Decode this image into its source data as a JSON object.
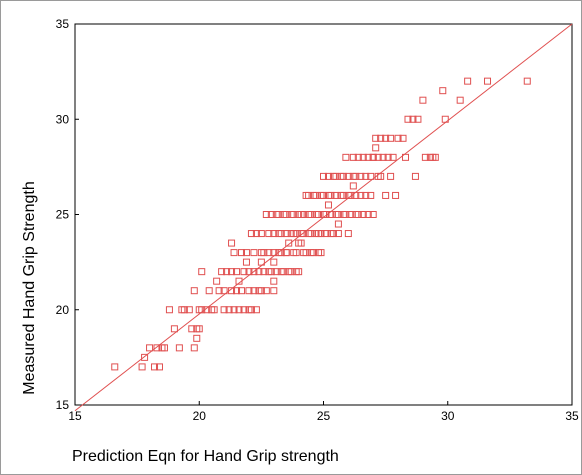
{
  "chart_data": {
    "type": "scatter",
    "title": "",
    "xlabel": "Prediction Eqn for Hand Grip strength",
    "ylabel": "Measured Hand Grip Strength",
    "xlim": [
      15,
      35
    ],
    "ylim": [
      15,
      35
    ],
    "xticks": [
      "15",
      "20",
      "25",
      "30",
      "35"
    ],
    "yticks": [
      "15",
      "20",
      "25",
      "30",
      "35"
    ],
    "grid": false,
    "legend": "none",
    "marker": "hollow-square",
    "colors": {
      "points": "#e05050",
      "fit_line": "#e05050",
      "axes": "#000000",
      "background": "#ffffff"
    },
    "fit_line": {
      "x": [
        15,
        35
      ],
      "y": [
        14.7,
        35
      ]
    },
    "series": [
      {
        "values": [
          [
            16.6,
            17
          ],
          [
            17.7,
            17
          ],
          [
            17.8,
            17.5
          ],
          [
            18.0,
            18
          ],
          [
            18.2,
            17
          ],
          [
            18.3,
            18
          ],
          [
            18.4,
            17
          ],
          [
            18.5,
            18
          ],
          [
            18.6,
            18
          ],
          [
            18.8,
            20
          ],
          [
            19.0,
            19
          ],
          [
            19.2,
            18
          ],
          [
            19.3,
            20
          ],
          [
            19.4,
            20
          ],
          [
            19.6,
            20
          ],
          [
            19.7,
            19
          ],
          [
            19.8,
            18
          ],
          [
            19.8,
            21
          ],
          [
            19.9,
            18.5
          ],
          [
            19.9,
            19
          ],
          [
            20.0,
            19
          ],
          [
            20.0,
            20
          ],
          [
            20.1,
            22
          ],
          [
            20.1,
            20
          ],
          [
            20.3,
            20
          ],
          [
            20.4,
            21
          ],
          [
            20.5,
            20
          ],
          [
            20.6,
            20
          ],
          [
            20.7,
            21.5
          ],
          [
            20.8,
            21
          ],
          [
            20.9,
            22
          ],
          [
            21.0,
            20
          ],
          [
            21.0,
            21
          ],
          [
            21.1,
            22
          ],
          [
            21.2,
            20
          ],
          [
            21.3,
            21
          ],
          [
            21.3,
            22
          ],
          [
            21.4,
            20
          ],
          [
            21.4,
            23
          ],
          [
            21.5,
            21
          ],
          [
            21.5,
            22
          ],
          [
            21.6,
            20
          ],
          [
            21.6,
            21.5
          ],
          [
            21.7,
            23
          ],
          [
            21.7,
            21
          ],
          [
            21.8,
            20
          ],
          [
            21.8,
            22
          ],
          [
            21.9,
            22.5
          ],
          [
            21.9,
            23
          ],
          [
            22.0,
            20
          ],
          [
            22.0,
            21
          ],
          [
            22.0,
            22
          ],
          [
            22.1,
            24
          ],
          [
            22.1,
            20
          ],
          [
            22.2,
            21
          ],
          [
            22.2,
            22
          ],
          [
            22.2,
            23
          ],
          [
            22.3,
            24
          ],
          [
            22.3,
            20
          ],
          [
            22.4,
            21
          ],
          [
            22.4,
            22
          ],
          [
            22.5,
            23
          ],
          [
            22.5,
            24
          ],
          [
            22.5,
            21
          ],
          [
            22.6,
            22
          ],
          [
            22.6,
            23
          ],
          [
            22.7,
            25
          ],
          [
            22.7,
            21
          ],
          [
            22.8,
            22
          ],
          [
            22.8,
            23
          ],
          [
            22.8,
            24
          ],
          [
            22.9,
            25
          ],
          [
            22.9,
            22
          ],
          [
            23.0,
            21
          ],
          [
            23.0,
            22.5
          ],
          [
            23.0,
            23
          ],
          [
            23.0,
            24
          ],
          [
            23.1,
            25
          ],
          [
            23.1,
            22
          ],
          [
            23.2,
            23
          ],
          [
            23.2,
            24
          ],
          [
            23.2,
            25
          ],
          [
            23.3,
            22
          ],
          [
            23.3,
            23
          ],
          [
            23.3,
            24
          ],
          [
            23.4,
            25
          ],
          [
            23.4,
            22
          ],
          [
            23.5,
            23
          ],
          [
            23.5,
            24
          ],
          [
            23.5,
            25
          ],
          [
            23.6,
            22
          ],
          [
            23.6,
            23.5
          ],
          [
            23.7,
            24
          ],
          [
            23.7,
            25
          ],
          [
            23.7,
            22
          ],
          [
            23.8,
            23
          ],
          [
            23.8,
            24
          ],
          [
            23.8,
            25
          ],
          [
            23.9,
            22
          ],
          [
            23.9,
            23
          ],
          [
            23.9,
            24
          ],
          [
            24.0,
            25
          ],
          [
            24.0,
            22
          ],
          [
            24.0,
            23.5
          ],
          [
            24.1,
            24
          ],
          [
            24.1,
            25
          ],
          [
            24.2,
            23
          ],
          [
            24.2,
            24
          ],
          [
            24.2,
            25
          ],
          [
            24.3,
            26
          ],
          [
            24.3,
            23
          ],
          [
            24.4,
            24
          ],
          [
            24.4,
            25
          ],
          [
            24.4,
            26
          ],
          [
            24.5,
            23
          ],
          [
            24.5,
            24
          ],
          [
            24.5,
            25
          ],
          [
            24.6,
            26
          ],
          [
            24.6,
            23
          ],
          [
            24.7,
            24
          ],
          [
            24.7,
            25
          ],
          [
            24.7,
            26
          ],
          [
            24.8,
            23
          ],
          [
            24.8,
            24
          ],
          [
            24.8,
            25
          ],
          [
            24.9,
            26
          ],
          [
            24.9,
            23
          ],
          [
            24.9,
            24
          ],
          [
            25.0,
            25
          ],
          [
            25.0,
            26
          ],
          [
            25.0,
            27
          ],
          [
            25.1,
            24
          ],
          [
            25.1,
            25
          ],
          [
            25.2,
            26
          ],
          [
            25.2,
            27
          ],
          [
            25.3,
            24
          ],
          [
            25.3,
            25
          ],
          [
            25.3,
            26
          ],
          [
            25.4,
            27
          ],
          [
            25.4,
            24
          ],
          [
            25.5,
            25
          ],
          [
            25.5,
            26
          ],
          [
            25.5,
            27
          ],
          [
            25.6,
            24
          ],
          [
            25.6,
            25
          ],
          [
            25.7,
            26
          ],
          [
            25.7,
            27
          ],
          [
            25.8,
            25
          ],
          [
            25.8,
            26
          ],
          [
            25.8,
            27
          ],
          [
            25.9,
            28
          ],
          [
            25.9,
            25
          ],
          [
            26.0,
            26
          ],
          [
            26.0,
            27
          ],
          [
            26.1,
            25
          ],
          [
            26.1,
            26
          ],
          [
            26.2,
            27
          ],
          [
            26.2,
            28
          ],
          [
            26.3,
            25
          ],
          [
            26.3,
            26
          ],
          [
            26.3,
            27
          ],
          [
            26.4,
            28
          ],
          [
            26.4,
            25
          ],
          [
            26.5,
            26
          ],
          [
            26.5,
            27
          ],
          [
            26.6,
            28
          ],
          [
            26.6,
            25
          ],
          [
            26.7,
            26
          ],
          [
            26.7,
            27
          ],
          [
            26.8,
            28
          ],
          [
            26.8,
            25
          ],
          [
            26.9,
            26
          ],
          [
            26.9,
            27
          ],
          [
            27.0,
            28
          ],
          [
            27.0,
            25
          ],
          [
            27.1,
            28.5
          ],
          [
            27.1,
            29
          ],
          [
            27.2,
            27
          ],
          [
            27.2,
            28
          ],
          [
            27.3,
            29
          ],
          [
            27.3,
            27
          ],
          [
            27.4,
            28
          ],
          [
            27.5,
            29
          ],
          [
            27.5,
            26
          ],
          [
            27.6,
            28
          ],
          [
            27.7,
            29
          ],
          [
            27.7,
            27
          ],
          [
            27.8,
            28
          ],
          [
            27.9,
            26
          ],
          [
            28.0,
            29
          ],
          [
            28.2,
            29
          ],
          [
            28.3,
            28
          ],
          [
            28.4,
            30
          ],
          [
            28.6,
            30
          ],
          [
            28.7,
            27
          ],
          [
            28.8,
            30
          ],
          [
            29.0,
            31
          ],
          [
            29.1,
            28
          ],
          [
            29.3,
            28
          ],
          [
            29.4,
            28
          ],
          [
            29.5,
            28
          ],
          [
            29.8,
            31.5
          ],
          [
            29.9,
            30
          ],
          [
            30.5,
            31
          ],
          [
            30.8,
            32
          ],
          [
            31.6,
            32
          ],
          [
            33.2,
            32
          ],
          [
            26.2,
            26.5
          ],
          [
            27.0,
            28
          ],
          [
            25.2,
            25.5
          ],
          [
            23.5,
            23
          ],
          [
            22.5,
            22.5
          ],
          [
            21.3,
            23.5
          ],
          [
            24.1,
            23.5
          ],
          [
            25.6,
            24.5
          ],
          [
            26.0,
            24
          ],
          [
            23.0,
            21.5
          ]
        ]
      }
    ]
  }
}
